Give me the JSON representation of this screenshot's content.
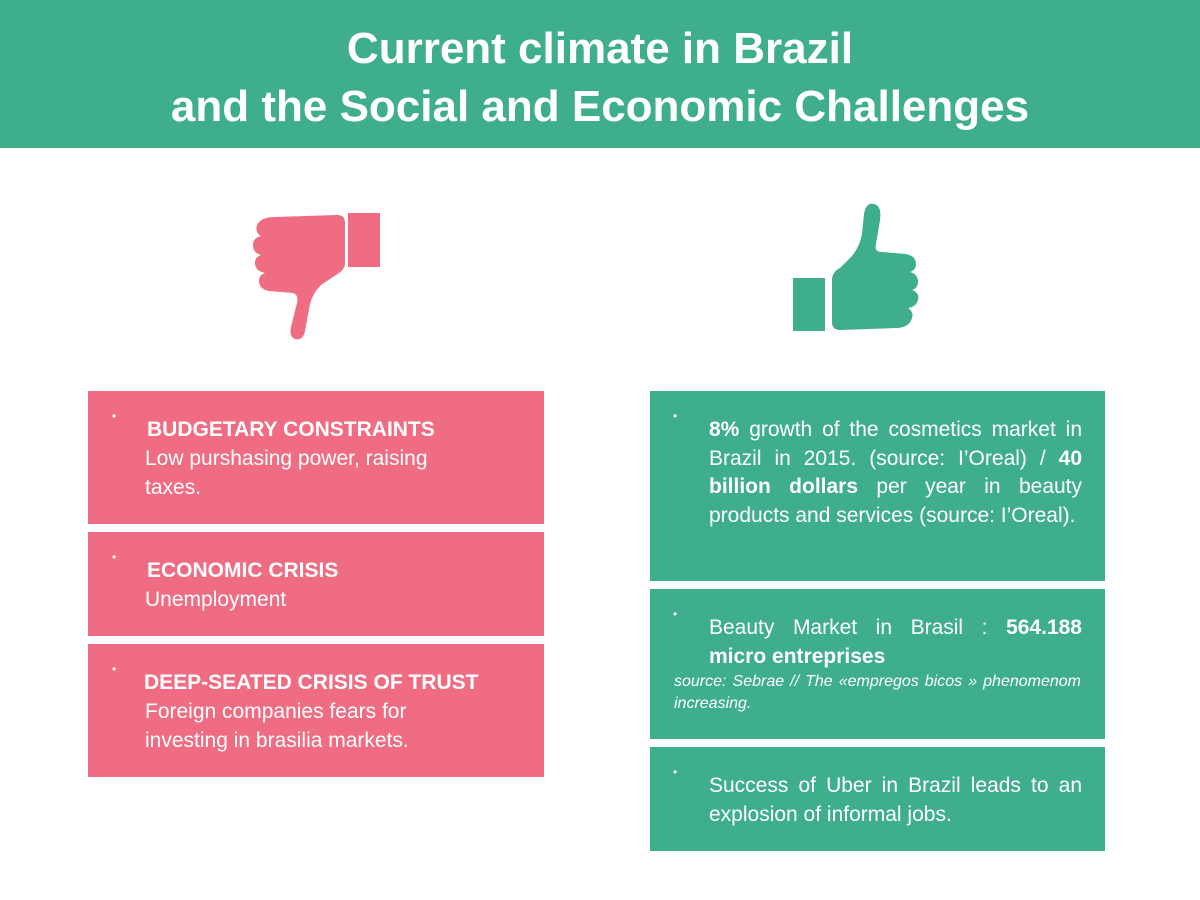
{
  "header": {
    "title_line1": "Current climate in Brazil",
    "title_line2": "and the Social and  Economic Challenges"
  },
  "icons": {
    "negative": "thumbs-down-icon",
    "positive": "thumbs-up-icon"
  },
  "colors": {
    "header": "#3fae8d",
    "negative": "#ef6c83",
    "positive": "#3fae8d"
  },
  "bullet_symbol": "•",
  "challenges": [
    {
      "title": "BUDGETARY CONSTRAINTS",
      "line1": "Low purshasing power, raising",
      "line2": "taxes."
    },
    {
      "title": "ECONOMIC CRISIS",
      "line1": "Unemployment"
    },
    {
      "title": "DEEP-SEATED CRISIS OF TRUST",
      "line1": "Foreign companies fears for",
      "line2": "investing in brasilia markets."
    }
  ],
  "opportunities": {
    "cosmetics": {
      "growth_value": "8%",
      "growth_text": " growth of the cosmetics market in Brazil in 2015. (source: I’Oreal) / ",
      "billion_value": "40 billion dollars",
      "billion_text": " per year in beauty products and services (source: I’Oreal)."
    },
    "micro": {
      "text": "Beauty Market in Brasil :",
      "count": "564.188",
      "label": "micro entreprises",
      "source": "source: Sebrae  // The «empregos bicos » phenomenom increasing."
    },
    "uber": {
      "text": "Success of Uber in Brazil leads to an explosion of informal jobs."
    }
  }
}
